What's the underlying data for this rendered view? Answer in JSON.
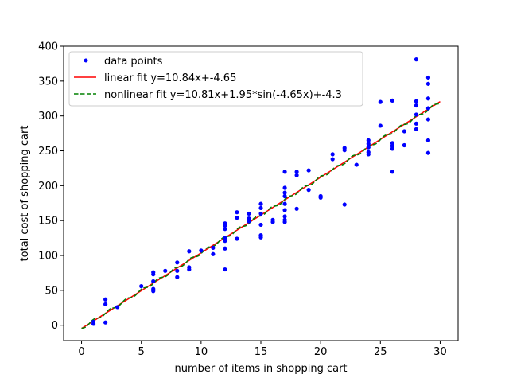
{
  "chart_data": {
    "type": "scatter",
    "xlabel": "number of items in shopping cart",
    "ylabel": "total cost of shopping cart",
    "xlim": [
      -1.5,
      31.5
    ],
    "ylim": [
      -22,
      400
    ],
    "x_ticks": [
      0,
      5,
      10,
      15,
      20,
      25,
      30
    ],
    "y_ticks": [
      0,
      50,
      100,
      150,
      200,
      250,
      300,
      350,
      400
    ],
    "grid": false,
    "legend_position": "top-left",
    "legend": [
      {
        "label": "data points",
        "color": "#0000ff",
        "style": "marker"
      },
      {
        "label": "linear fit y=10.84x+-4.65",
        "color": "#ff0000",
        "style": "solid"
      },
      {
        "label": "nonlinear fit y=10.81x+1.95*sin(-4.65x)+-4.3",
        "color": "#008000",
        "style": "dashed"
      }
    ],
    "series": [
      {
        "name": "data points",
        "color": "#0000ff",
        "points": [
          [
            1,
            2
          ],
          [
            1,
            5
          ],
          [
            2,
            4
          ],
          [
            2,
            30
          ],
          [
            2,
            37
          ],
          [
            3,
            26
          ],
          [
            5,
            56
          ],
          [
            6,
            49
          ],
          [
            6,
            52
          ],
          [
            6,
            63
          ],
          [
            6,
            73
          ],
          [
            6,
            76
          ],
          [
            7,
            78
          ],
          [
            8,
            69
          ],
          [
            8,
            78
          ],
          [
            8,
            90
          ],
          [
            9,
            80
          ],
          [
            9,
            83
          ],
          [
            9,
            106
          ],
          [
            10,
            107
          ],
          [
            11,
            102
          ],
          [
            11,
            111
          ],
          [
            12,
            80
          ],
          [
            12,
            110
          ],
          [
            12,
            121
          ],
          [
            12,
            125
          ],
          [
            12,
            138
          ],
          [
            12,
            143
          ],
          [
            12,
            146
          ],
          [
            13,
            124
          ],
          [
            13,
            154
          ],
          [
            13,
            162
          ],
          [
            14,
            149
          ],
          [
            14,
            152
          ],
          [
            14,
            153
          ],
          [
            14,
            160
          ],
          [
            15,
            126
          ],
          [
            15,
            129
          ],
          [
            15,
            144
          ],
          [
            15,
            160
          ],
          [
            15,
            168
          ],
          [
            15,
            174
          ],
          [
            16,
            148
          ],
          [
            16,
            151
          ],
          [
            17,
            148
          ],
          [
            17,
            151
          ],
          [
            17,
            156
          ],
          [
            17,
            165
          ],
          [
            17,
            174
          ],
          [
            17,
            185
          ],
          [
            17,
            190
          ],
          [
            17,
            197
          ],
          [
            17,
            220
          ],
          [
            18,
            167
          ],
          [
            18,
            215
          ],
          [
            18,
            220
          ],
          [
            19,
            194
          ],
          [
            19,
            222
          ],
          [
            20,
            183
          ],
          [
            20,
            185
          ],
          [
            21,
            238
          ],
          [
            21,
            245
          ],
          [
            22,
            173
          ],
          [
            22,
            251
          ],
          [
            22,
            254
          ],
          [
            23,
            230
          ],
          [
            24,
            245
          ],
          [
            24,
            248
          ],
          [
            24,
            255
          ],
          [
            24,
            260
          ],
          [
            24,
            265
          ],
          [
            25,
            286
          ],
          [
            25,
            320
          ],
          [
            26,
            220
          ],
          [
            26,
            253
          ],
          [
            26,
            257
          ],
          [
            26,
            261
          ],
          [
            26,
            322
          ],
          [
            27,
            258
          ],
          [
            27,
            278
          ],
          [
            28,
            281
          ],
          [
            28,
            289
          ],
          [
            28,
            302
          ],
          [
            28,
            315
          ],
          [
            28,
            321
          ],
          [
            28,
            381
          ],
          [
            29,
            247
          ],
          [
            29,
            265
          ],
          [
            29,
            295
          ],
          [
            29,
            311
          ],
          [
            29,
            325
          ],
          [
            29,
            346
          ],
          [
            29,
            355
          ]
        ]
      },
      {
        "name": "linear fit y=10.84x+-4.65",
        "color": "#ff0000",
        "x_range": [
          0,
          30
        ],
        "slope": 10.84,
        "intercept": -4.65
      },
      {
        "name": "nonlinear fit y=10.81x+1.95*sin(-4.65x)+-4.3",
        "color": "#008000",
        "x_range": [
          0,
          30
        ],
        "slope": 10.81,
        "amplitude": 1.95,
        "frequency": -4.65,
        "intercept": -4.3
      }
    ]
  }
}
